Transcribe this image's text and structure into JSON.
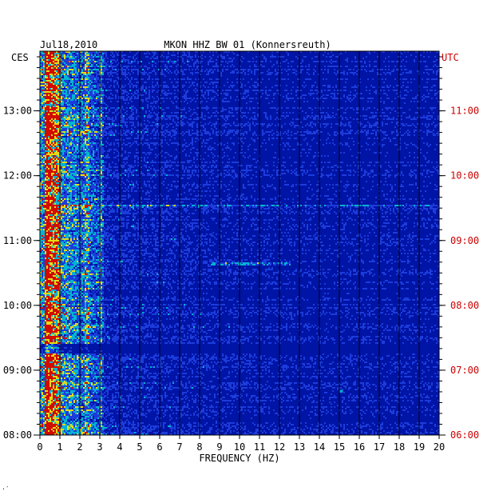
{
  "header": {
    "date": "Jul18,2010",
    "station": "MKON HHZ BW 01 (Konnersreuth)"
  },
  "footer_mark": "·′",
  "chart_data": {
    "type": "heatmap",
    "title": "MKON HHZ BW 01 (Konnersreuth)",
    "subtitle": "Jul18,2010",
    "xlabel": "FREQUENCY (HZ)",
    "xlim": [
      0,
      20
    ],
    "x_ticks": [
      "0",
      "1",
      "2",
      "3",
      "4",
      "5",
      "6",
      "7",
      "8",
      "9",
      "10",
      "11",
      "12",
      "13",
      "14",
      "15",
      "16",
      "17",
      "18",
      "19",
      "20"
    ],
    "left_axis": {
      "label": "CES",
      "ticks": [
        "13:00",
        "12:00",
        "11:00",
        "10:00",
        "09:00",
        "08:00"
      ],
      "tick_values_hours": [
        13,
        12,
        11,
        10,
        9,
        8
      ]
    },
    "right_axis": {
      "label": "UTC",
      "ticks": [
        "11:00",
        "10:00",
        "09:00",
        "08:00",
        "07:00",
        "06:00"
      ],
      "tick_values_hours": [
        11,
        10,
        9,
        8,
        7,
        6
      ]
    },
    "ylim_ces_hours": [
      8.0,
      13.92
    ],
    "grid": true,
    "colors": {
      "background": "#0014a6",
      "low": "#1c3cdc",
      "mid": "#00b4d2",
      "high": "#e6dc14",
      "peak": "#d20a00",
      "axis": "#000000",
      "utc_text": "#cc0000"
    },
    "features": [
      {
        "note": "persistent high energy band",
        "x_range_hz": [
          0.1,
          1.0
        ]
      },
      {
        "note": "recurrent lines",
        "x_values_hz": [
          2.3,
          3.0
        ]
      },
      {
        "note": "horizontal event",
        "y_ces_hours": 11.55,
        "x_range_hz": [
          0,
          20
        ]
      },
      {
        "note": "horizontal event",
        "y_ces_hours": 10.65,
        "x_range_hz": [
          8.5,
          12.5
        ]
      },
      {
        "note": "quiet band",
        "y_ces_hours": 9.35,
        "x_range_hz": [
          0,
          20
        ]
      },
      {
        "note": "isolated blip",
        "y_ces_hours": 8.67,
        "x_value_hz": 15.1
      }
    ]
  }
}
